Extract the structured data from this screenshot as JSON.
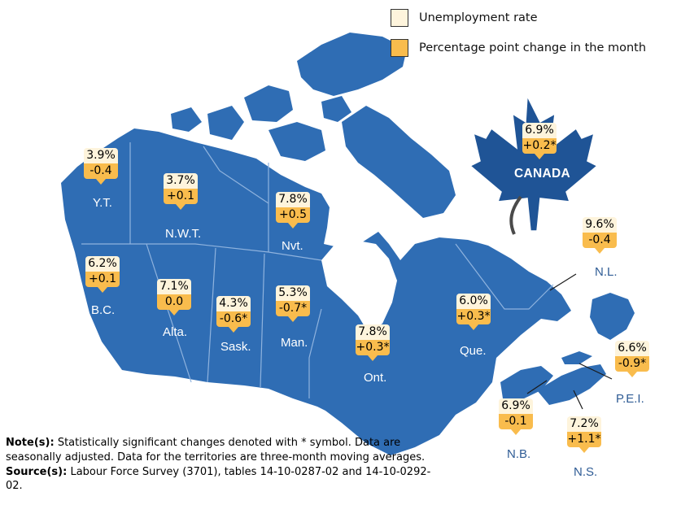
{
  "legend": {
    "rate_label": "Unemployment rate",
    "change_label": "Percentage point change in the month",
    "rate_color": "#fef4dc",
    "change_color": "#f9bc4d"
  },
  "map_color": "#2f6db4",
  "national": {
    "name": "CANADA",
    "rate": "6.9%",
    "change": "+0.2*"
  },
  "provinces": {
    "yt": {
      "name": "Y.T.",
      "rate": "3.9%",
      "change": "-0.4"
    },
    "nwt": {
      "name": "N.W.T.",
      "rate": "3.7%",
      "change": "+0.1"
    },
    "nvt": {
      "name": "Nvt.",
      "rate": "7.8%",
      "change": "+0.5"
    },
    "bc": {
      "name": "B.C.",
      "rate": "6.2%",
      "change": "+0.1"
    },
    "ab": {
      "name": "Alta.",
      "rate": "7.1%",
      "change": "0.0"
    },
    "sk": {
      "name": "Sask.",
      "rate": "4.3%",
      "change": "-0.6*"
    },
    "mb": {
      "name": "Man.",
      "rate": "5.3%",
      "change": "-0.7*"
    },
    "on": {
      "name": "Ont.",
      "rate": "7.8%",
      "change": "+0.3*"
    },
    "qc": {
      "name": "Que.",
      "rate": "6.0%",
      "change": "+0.3*"
    },
    "nl": {
      "name": "N.L.",
      "rate": "9.6%",
      "change": "-0.4"
    },
    "pe": {
      "name": "P.E.I.",
      "rate": "6.6%",
      "change": "-0.9*"
    },
    "nb": {
      "name": "N.B.",
      "rate": "6.9%",
      "change": "-0.1"
    },
    "ns": {
      "name": "N.S.",
      "rate": "7.2%",
      "change": "+1.1*"
    }
  },
  "notes": {
    "note_label": "Note(s):",
    "note_text": "Statistically significant changes denoted with * symbol. Data are seasonally adjusted. Data for the territories are three-month moving averages.",
    "source_label": "Source(s):",
    "source_text": "Labour Force Survey (3701), tables 14-10-0287-02 and 14-10-0292-02."
  }
}
